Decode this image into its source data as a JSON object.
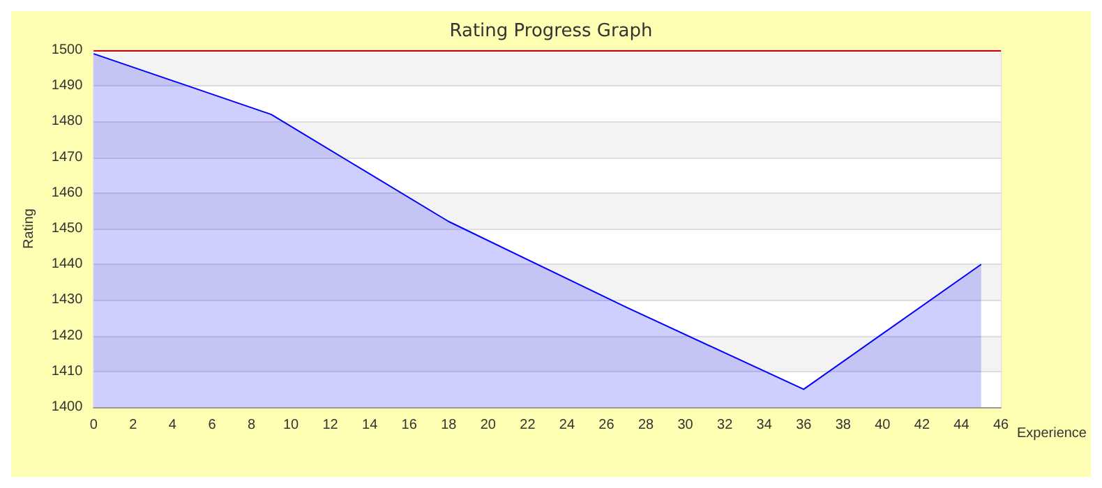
{
  "chart_data": {
    "type": "area",
    "title": "Rating Progress Graph",
    "xlabel": "Experience",
    "ylabel": "Rating",
    "x": [
      0,
      9,
      18,
      27,
      36,
      45
    ],
    "series": [
      {
        "color": "#0000ff",
        "values": [
          1499,
          1482,
          1452,
          1428,
          1405,
          1440
        ]
      }
    ],
    "xlim": [
      0,
      46
    ],
    "xticks": [
      0,
      2,
      4,
      6,
      8,
      10,
      12,
      14,
      16,
      18,
      20,
      22,
      24,
      26,
      28,
      30,
      32,
      34,
      36,
      38,
      40,
      42,
      44,
      46
    ],
    "ylim": [
      1400,
      1500
    ],
    "yticks": [
      1400,
      1410,
      1420,
      1430,
      1440,
      1450,
      1460,
      1470,
      1480,
      1490,
      1500
    ],
    "ref_lines": [
      {
        "axis": "y",
        "value": 1500,
        "color": "#cc0000"
      }
    ],
    "grid": "y",
    "marker": "none",
    "line_style": "solid"
  }
}
